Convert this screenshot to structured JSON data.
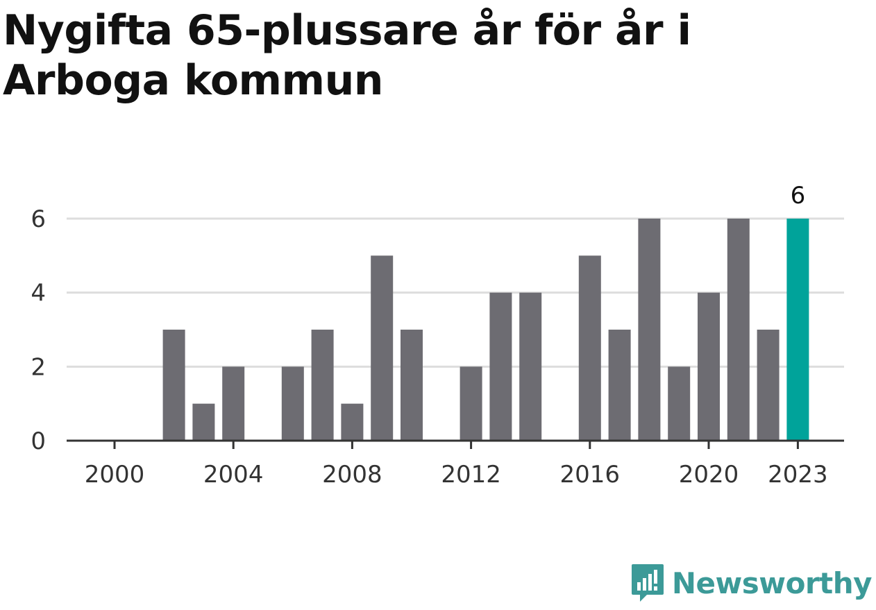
{
  "title": "Nygifta 65-plussare år för år i Arboga kommun",
  "brand": {
    "name": "Newsworthy",
    "icon": "newsworthy-logo-icon",
    "color": "#3c9a98"
  },
  "colors": {
    "bar": "#6d6c72",
    "highlight": "#00a39a",
    "grid": "#dddddd",
    "axis": "#333333"
  },
  "chart_data": {
    "type": "bar",
    "title": "Nygifta 65-plussare år för år i Arboga kommun",
    "xlabel": "",
    "ylabel": "",
    "ylim": [
      0,
      6
    ],
    "yticks": [
      0,
      2,
      4,
      6
    ],
    "xtick_labels": [
      "2000",
      "2004",
      "2008",
      "2012",
      "2016",
      "2020",
      "2023"
    ],
    "categories": [
      "2000",
      "2001",
      "2002",
      "2003",
      "2004",
      "2005",
      "2006",
      "2007",
      "2008",
      "2009",
      "2010",
      "2011",
      "2012",
      "2013",
      "2014",
      "2015",
      "2016",
      "2017",
      "2018",
      "2019",
      "2020",
      "2021",
      "2022",
      "2023"
    ],
    "values": [
      0,
      0,
      3,
      1,
      2,
      0,
      2,
      3,
      1,
      5,
      3,
      0,
      2,
      4,
      4,
      0,
      5,
      3,
      6,
      2,
      4,
      6,
      3,
      6
    ],
    "highlight": {
      "category": "2023",
      "label": "6"
    },
    "grid": true,
    "legend": "none"
  }
}
